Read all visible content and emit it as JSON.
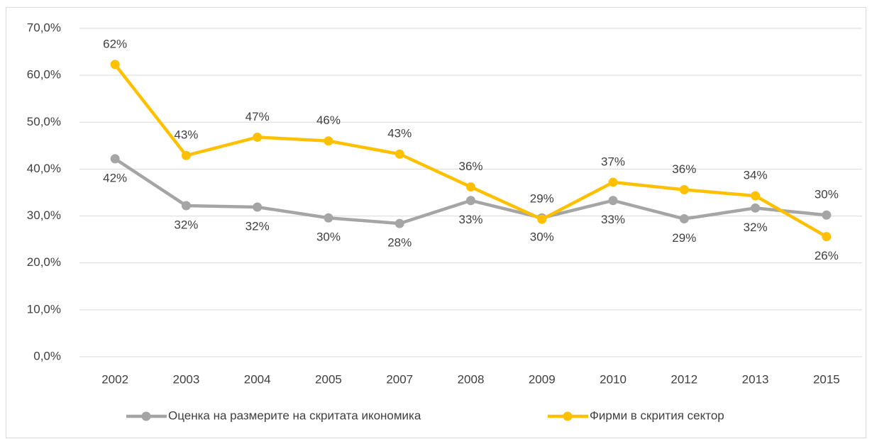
{
  "chart_data": {
    "type": "line",
    "categories": [
      "2002",
      "2003",
      "2004",
      "2005",
      "2007",
      "2008",
      "2009",
      "2010",
      "2012",
      "2013",
      "2015"
    ],
    "series": [
      {
        "name": "Оценка на размерите на скритата икономика",
        "color": "#a5a5a5",
        "values": [
          42.2,
          32.2,
          31.9,
          29.6,
          28.4,
          33.3,
          29.6,
          33.3,
          29.4,
          31.7,
          30.2
        ],
        "value_labels": [
          "42%",
          "32%",
          "32%",
          "30%",
          "28%",
          "33%",
          "30%",
          "33%",
          "29%",
          "32%",
          "30%"
        ]
      },
      {
        "name": "Фирми в скрития сектор",
        "color": "#ffc000",
        "values": [
          62.3,
          42.9,
          46.8,
          46.0,
          43.2,
          36.2,
          29.3,
          37.2,
          35.6,
          34.3,
          25.6
        ],
        "value_labels": [
          "62%",
          "43%",
          "47%",
          "46%",
          "43%",
          "36%",
          "29%",
          "37%",
          "36%",
          "34%",
          "26%"
        ]
      }
    ],
    "ylim": [
      0,
      70
    ],
    "yticks": [
      {
        "value": 0,
        "label": "0,0%"
      },
      {
        "value": 10,
        "label": "10,0%"
      },
      {
        "value": 20,
        "label": "20,0%"
      },
      {
        "value": 30,
        "label": "30,0%"
      },
      {
        "value": 40,
        "label": "40,0%"
      },
      {
        "value": 50,
        "label": "50,0%"
      },
      {
        "value": 60,
        "label": "60,0%"
      },
      {
        "value": 70,
        "label": "70,0%"
      }
    ],
    "grid": true,
    "legend": "bottom"
  }
}
